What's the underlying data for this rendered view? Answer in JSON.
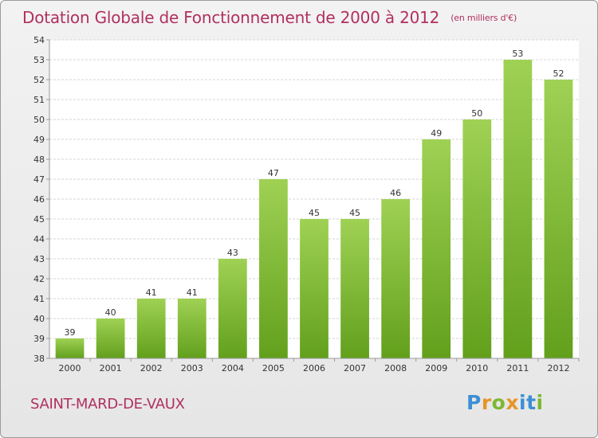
{
  "title": "Dotation Globale de Fonctionnement de 2000 à 2012",
  "unit": "(en milliers d'€)",
  "commune": "SAINT-MARD-DE-VAUX",
  "brand": "Proxiti",
  "colors": {
    "title": "#b03060",
    "bar_top": "#9fd154",
    "bar_bottom": "#62a01c",
    "brand_letters": [
      "#3c8fd4",
      "#e6952a",
      "#7cb832",
      "#e6952a",
      "#3c8fd4",
      "#3c8fd4",
      "#7cb832"
    ]
  },
  "chart_data": {
    "type": "bar",
    "title": "Dotation Globale de Fonctionnement de 2000 à 2012",
    "categories": [
      "2000",
      "2001",
      "2002",
      "2003",
      "2004",
      "2005",
      "2006",
      "2007",
      "2008",
      "2009",
      "2010",
      "2011",
      "2012"
    ],
    "values": [
      39,
      40,
      41,
      41,
      43,
      47,
      45,
      45,
      46,
      49,
      50,
      53,
      52
    ],
    "ylim": [
      38,
      54
    ],
    "yticks": [
      38,
      39,
      40,
      41,
      42,
      43,
      44,
      45,
      46,
      47,
      48,
      49,
      50,
      51,
      52,
      53,
      54
    ],
    "grid": true,
    "data_labels": true
  }
}
